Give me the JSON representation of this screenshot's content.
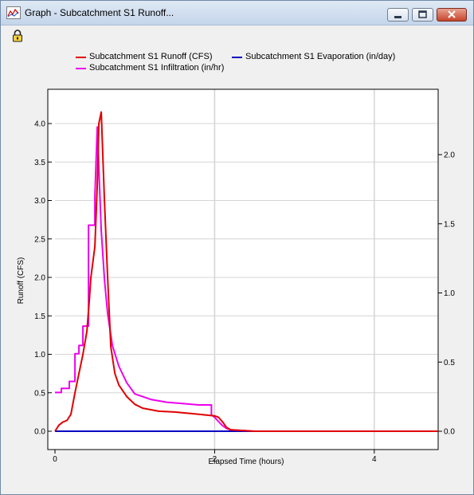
{
  "window": {
    "title": "Graph - Subcatchment S1 Runoff..."
  },
  "icons": {
    "app": "graph-app-icon",
    "lock": "lock-icon"
  },
  "chart_data": {
    "type": "line",
    "xlabel": "Elapsed Time (hours)",
    "ylabel": "Runoff (CFS)",
    "xlim": [
      0,
      4.8
    ],
    "ylim": [
      0,
      4.0
    ],
    "y2lim": [
      0,
      2.0
    ],
    "x_ticks": [
      "0",
      "2",
      "4"
    ],
    "y_ticks": [
      "0.0",
      "0.5",
      "1.0",
      "1.5",
      "2.0",
      "2.5",
      "3.0",
      "3.5",
      "4.0"
    ],
    "y2_ticks": [
      "0.0",
      "0.5",
      "1.0",
      "1.5",
      "2.0"
    ],
    "grid": true,
    "legend": "top",
    "series": [
      {
        "name": "Subcatchment S1 Runoff (CFS)",
        "axis": "left",
        "color": "#e00000",
        "x": [
          0,
          0.05,
          0.1,
          0.15,
          0.2,
          0.25,
          0.3,
          0.35,
          0.4,
          0.43,
          0.45,
          0.5,
          0.53,
          0.55,
          0.58,
          0.62,
          0.66,
          0.7,
          0.75,
          0.8,
          0.9,
          1.0,
          1.1,
          1.2,
          1.3,
          1.5,
          1.7,
          1.9,
          2.0,
          2.05,
          2.1,
          2.15,
          2.2,
          2.5,
          3.0,
          4.0,
          4.8
        ],
        "y": [
          0.0,
          0.08,
          0.12,
          0.14,
          0.22,
          0.5,
          0.75,
          1.0,
          1.3,
          1.7,
          2.0,
          2.4,
          3.2,
          4.0,
          4.15,
          3.0,
          2.0,
          1.1,
          0.75,
          0.6,
          0.45,
          0.35,
          0.3,
          0.28,
          0.26,
          0.25,
          0.23,
          0.21,
          0.2,
          0.18,
          0.12,
          0.05,
          0.02,
          0.0,
          0.0,
          0.0,
          0.0
        ]
      },
      {
        "name": "Subcatchment S1 Evaporation (in/day)",
        "axis": "right",
        "color": "#0000c0",
        "x": [
          0,
          4.8
        ],
        "y": [
          0.0,
          0.0
        ]
      },
      {
        "name": "Subcatchment S1 Infiltration (in/hr)",
        "axis": "right",
        "color": "#ee00ee",
        "x": [
          0,
          0.08,
          0.08,
          0.18,
          0.18,
          0.25,
          0.25,
          0.3,
          0.3,
          0.35,
          0.35,
          0.42,
          0.42,
          0.5,
          0.5,
          0.53,
          0.58,
          0.62,
          0.66,
          0.72,
          0.8,
          0.9,
          1.0,
          1.2,
          1.4,
          1.6,
          1.8,
          1.96,
          1.96,
          2.0,
          2.05,
          2.1,
          2.15,
          2.2,
          2.5,
          3.0,
          4.0,
          4.8
        ],
        "y": [
          0.28,
          0.28,
          0.31,
          0.31,
          0.36,
          0.36,
          0.56,
          0.56,
          0.62,
          0.62,
          0.76,
          0.76,
          1.49,
          1.49,
          1.7,
          2.2,
          1.45,
          1.1,
          0.85,
          0.62,
          0.47,
          0.35,
          0.27,
          0.23,
          0.21,
          0.2,
          0.19,
          0.19,
          0.12,
          0.1,
          0.07,
          0.04,
          0.02,
          0.01,
          0.0,
          0.0,
          0.0,
          0.0
        ]
      }
    ]
  }
}
